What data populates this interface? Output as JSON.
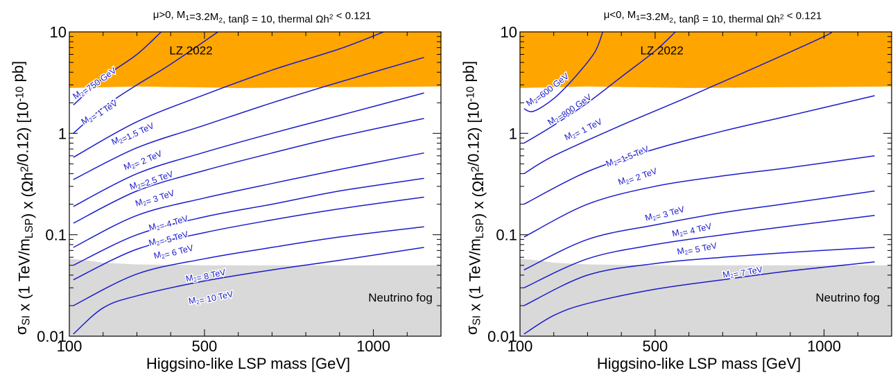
{
  "chart_data": [
    {
      "type": "line",
      "title": "μ>0,  M₁=3.2M₂,  tanβ = 10,  thermal Ωh² < 0.121",
      "xlabel": "Higgsino-like LSP mass  [GeV]",
      "ylabel": "σSI x (1 TeV/mLSP) x (Ωh²/0.12)   [10⁻¹⁰ pb]",
      "xlim": [
        100,
        1200
      ],
      "ylim": [
        0.01,
        10
      ],
      "yscale": "log",
      "xticks": [
        {
          "v": 100,
          "label": "100"
        },
        {
          "v": 500,
          "label": "500"
        },
        {
          "v": 1000,
          "label": "1000"
        }
      ],
      "yticks": [
        {
          "v": 0.01,
          "label": "0.01"
        },
        {
          "v": 0.1,
          "label": "0.1"
        },
        {
          "v": 1,
          "label": "1"
        },
        {
          "v": 10,
          "label": "10"
        }
      ],
      "regions": [
        {
          "name": "LZ 2022",
          "color": "#ffa500",
          "bound": [
            [
              100,
              2.8
            ],
            [
              300,
              2.9
            ],
            [
              600,
              2.8
            ],
            [
              900,
              2.85
            ],
            [
              1200,
              2.9
            ]
          ],
          "side": "above",
          "label_at": [
            460,
            6.0
          ]
        },
        {
          "name": "Neutrino fog",
          "color": "#d9d9d9",
          "bound": [
            [
              100,
              0.058
            ],
            [
              150,
              0.056
            ],
            [
              200,
              0.053
            ],
            [
              300,
              0.051
            ],
            [
              500,
              0.05
            ],
            [
              1200,
              0.05
            ]
          ],
          "side": "below",
          "label_at": [
            1080,
            0.022
          ]
        }
      ],
      "series": [
        {
          "name": "M₂=750 GeV",
          "points": [
            [
              112,
              1.9
            ],
            [
              200,
              3.5
            ],
            [
              300,
              6.0
            ],
            [
              372,
              10
            ]
          ],
          "label_at": [
            178,
            3.0
          ],
          "label_angle": -36
        },
        {
          "name": "M₂= 1 TeV",
          "points": [
            [
              112,
              1.0
            ],
            [
              200,
              1.8
            ],
            [
              300,
              3.0
            ],
            [
              400,
              4.8
            ],
            [
              540,
              10
            ]
          ],
          "label_at": [
            192,
            1.55
          ],
          "label_angle": -33
        },
        {
          "name": "M₂=1.5 TeV",
          "points": [
            [
              112,
              0.58
            ],
            [
              300,
              1.3
            ],
            [
              500,
              2.4
            ],
            [
              700,
              4.2
            ],
            [
              900,
              6.8
            ],
            [
              1030,
              10
            ]
          ],
          "label_at": [
            290,
            0.95
          ],
          "label_angle": -25
        },
        {
          "name": "M₂= 2 TeV",
          "points": [
            [
              112,
              0.35
            ],
            [
              300,
              0.72
            ],
            [
              500,
              1.2
            ],
            [
              700,
              2.0
            ],
            [
              900,
              3.2
            ],
            [
              1150,
              5.6
            ]
          ],
          "label_at": [
            320,
            0.52
          ],
          "label_angle": -24
        },
        {
          "name": "M₂=2.5 TeV",
          "points": [
            [
              112,
              0.19
            ],
            [
              300,
              0.4
            ],
            [
              500,
              0.65
            ],
            [
              700,
              1.0
            ],
            [
              900,
              1.5
            ],
            [
              1150,
              2.5
            ]
          ],
          "label_at": [
            345,
            0.33
          ],
          "label_angle": -20
        },
        {
          "name": "M₂= 3 TeV",
          "points": [
            [
              112,
              0.13
            ],
            [
              300,
              0.27
            ],
            [
              500,
              0.43
            ],
            [
              700,
              0.64
            ],
            [
              900,
              0.93
            ],
            [
              1150,
              1.4
            ]
          ],
          "label_at": [
            355,
            0.22
          ],
          "label_angle": -19
        },
        {
          "name": "M₂= 4 TeV",
          "points": [
            [
              112,
              0.075
            ],
            [
              300,
              0.155
            ],
            [
              500,
              0.23
            ],
            [
              700,
              0.32
            ],
            [
              900,
              0.44
            ],
            [
              1150,
              0.64
            ]
          ],
          "label_at": [
            395,
            0.125
          ],
          "label_angle": -17
        },
        {
          "name": "M₂= 5 TeV",
          "points": [
            [
              112,
              0.05
            ],
            [
              300,
              0.1
            ],
            [
              500,
              0.15
            ],
            [
              700,
              0.2
            ],
            [
              900,
              0.27
            ],
            [
              1150,
              0.36
            ]
          ],
          "label_at": [
            395,
            0.088
          ],
          "label_angle": -16
        },
        {
          "name": "M₂= 6 TeV",
          "points": [
            [
              112,
              0.036
            ],
            [
              300,
              0.072
            ],
            [
              500,
              0.105
            ],
            [
              700,
              0.14
            ],
            [
              900,
              0.18
            ],
            [
              1150,
              0.235
            ]
          ],
          "label_at": [
            410,
            0.065
          ],
          "label_angle": -15
        },
        {
          "name": "M₂= 8 TeV",
          "points": [
            [
              112,
              0.02
            ],
            [
              300,
              0.041
            ],
            [
              500,
              0.058
            ],
            [
              700,
              0.075
            ],
            [
              900,
              0.095
            ],
            [
              1150,
              0.12
            ]
          ],
          "label_at": [
            505,
            0.038
          ],
          "label_angle": -13
        },
        {
          "name": "M₂= 10 TeV",
          "points": [
            [
              112,
              0.0105
            ],
            [
              200,
              0.019
            ],
            [
              300,
              0.025
            ],
            [
              500,
              0.035
            ],
            [
              700,
              0.045
            ],
            [
              900,
              0.056
            ],
            [
              1150,
              0.075
            ]
          ],
          "label_at": [
            520,
            0.023
          ],
          "label_angle": -12
        }
      ]
    },
    {
      "type": "line",
      "title": "μ<0,  M₁=3.2M₂,  tanβ = 10,  thermal Ωh² < 0.121",
      "xlabel": "Higgsino-like LSP mass  [GeV]",
      "ylabel": "σSI x (1 TeV/mLSP) x (Ωh²/0.12)   [10⁻¹⁰ pb]",
      "xlim": [
        100,
        1200
      ],
      "ylim": [
        0.01,
        10
      ],
      "yscale": "log",
      "xticks": [
        {
          "v": 100,
          "label": "100"
        },
        {
          "v": 500,
          "label": "500"
        },
        {
          "v": 1000,
          "label": "1000"
        }
      ],
      "yticks": [
        {
          "v": 0.01,
          "label": "0.01"
        },
        {
          "v": 0.1,
          "label": "0.1"
        },
        {
          "v": 1,
          "label": "1"
        },
        {
          "v": 10,
          "label": "10"
        }
      ],
      "regions": [
        {
          "name": "LZ 2022",
          "color": "#ffa500",
          "bound": [
            [
              100,
              2.8
            ],
            [
              300,
              2.9
            ],
            [
              600,
              2.8
            ],
            [
              900,
              2.85
            ],
            [
              1200,
              2.9
            ]
          ],
          "side": "above",
          "label_at": [
            520,
            6.0
          ]
        },
        {
          "name": "Neutrino fog",
          "color": "#d9d9d9",
          "bound": [
            [
              100,
              0.058
            ],
            [
              150,
              0.056
            ],
            [
              200,
              0.053
            ],
            [
              300,
              0.051
            ],
            [
              500,
              0.05
            ],
            [
              1200,
              0.05
            ]
          ],
          "side": "below",
          "label_at": [
            1070,
            0.022
          ]
        }
      ],
      "series": [
        {
          "name": "M₂=600 GeV",
          "points": [
            [
              112,
              1.75
            ],
            [
              140,
              1.65
            ],
            [
              200,
              2.2
            ],
            [
              260,
              3.5
            ],
            [
              320,
              6.2
            ],
            [
              345,
              10
            ]
          ],
          "label_at": [
            185,
            2.6
          ],
          "label_angle": -38
        },
        {
          "name": "M₂=800 GeV",
          "points": [
            [
              112,
              0.8
            ],
            [
              200,
              1.2
            ],
            [
              300,
              2.0
            ],
            [
              400,
              3.6
            ],
            [
              500,
              6.5
            ],
            [
              560,
              10
            ]
          ],
          "label_at": [
            250,
            1.65
          ],
          "label_angle": -35
        },
        {
          "name": "M₂= 1 TeV",
          "points": [
            [
              112,
              0.4
            ],
            [
              200,
              0.6
            ],
            [
              400,
              1.2
            ],
            [
              600,
              2.3
            ],
            [
              800,
              4.5
            ],
            [
              1000,
              9.0
            ],
            [
              1020,
              10
            ]
          ],
          "label_at": [
            290,
            1.05
          ],
          "label_angle": -28
        },
        {
          "name": "M₂=1.5 TeV",
          "points": [
            [
              112,
              0.2
            ],
            [
              300,
              0.42
            ],
            [
              500,
              0.7
            ],
            [
              700,
              1.05
            ],
            [
              900,
              1.5
            ],
            [
              1150,
              2.35
            ]
          ],
          "label_at": [
            420,
            0.57
          ],
          "label_angle": -23
        },
        {
          "name": "M₂= 2 TeV",
          "points": [
            [
              112,
              0.095
            ],
            [
              300,
              0.2
            ],
            [
              500,
              0.3
            ],
            [
              700,
              0.38
            ],
            [
              900,
              0.46
            ],
            [
              1150,
              0.6
            ]
          ],
          "label_at": [
            450,
            0.36
          ],
          "label_angle": -20
        },
        {
          "name": "M₂= 3 TeV",
          "points": [
            [
              112,
              0.045
            ],
            [
              300,
              0.09
            ],
            [
              500,
              0.125
            ],
            [
              700,
              0.165
            ],
            [
              900,
              0.205
            ],
            [
              1150,
              0.27
            ]
          ],
          "label_at": [
            530,
            0.155
          ],
          "label_angle": -16
        },
        {
          "name": "M₂= 4 TeV",
          "points": [
            [
              112,
              0.03
            ],
            [
              300,
              0.058
            ],
            [
              500,
              0.08
            ],
            [
              700,
              0.1
            ],
            [
              900,
              0.122
            ],
            [
              1150,
              0.155
            ]
          ],
          "label_at": [
            610,
            0.107
          ],
          "label_angle": -14
        },
        {
          "name": "M₂= 5 TeV",
          "points": [
            [
              112,
              0.02
            ],
            [
              300,
              0.04
            ],
            [
              500,
              0.052
            ],
            [
              700,
              0.06
            ],
            [
              900,
              0.067
            ],
            [
              1150,
              0.075
            ]
          ],
          "label_at": [
            625,
            0.07
          ],
          "label_angle": -12
        },
        {
          "name": "M₂= 7 TeV",
          "points": [
            [
              112,
              0.0105
            ],
            [
              200,
              0.016
            ],
            [
              300,
              0.021
            ],
            [
              500,
              0.029
            ],
            [
              700,
              0.036
            ],
            [
              900,
              0.044
            ],
            [
              1150,
              0.054
            ]
          ],
          "label_at": [
            760,
            0.041
          ],
          "label_angle": -11
        }
      ]
    }
  ]
}
